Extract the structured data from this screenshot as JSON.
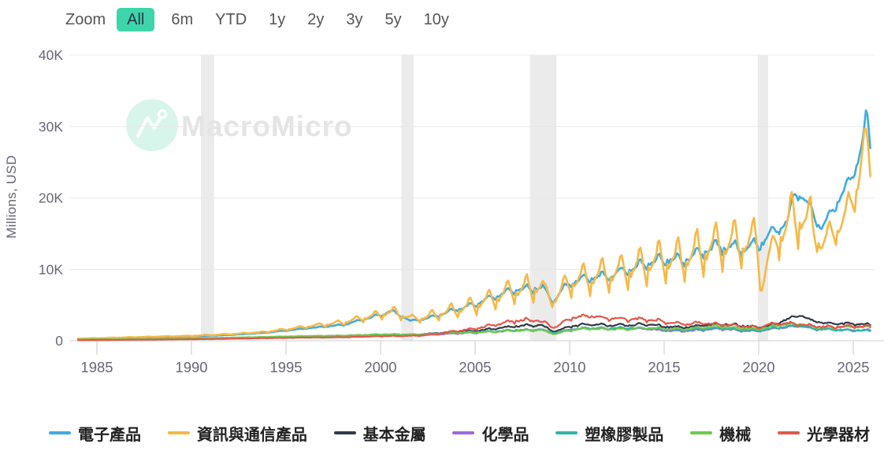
{
  "toolbar": {
    "zoom_label": "Zoom",
    "active_color": "#3fd5ab",
    "ranges": [
      {
        "label": "All",
        "active": true
      },
      {
        "label": "6m",
        "active": false
      },
      {
        "label": "YTD",
        "active": false
      },
      {
        "label": "1y",
        "active": false
      },
      {
        "label": "2y",
        "active": false
      },
      {
        "label": "3y",
        "active": false
      },
      {
        "label": "5y",
        "active": false
      },
      {
        "label": "10y",
        "active": false
      }
    ]
  },
  "chart": {
    "watermark": "MacroMicro",
    "y_axis": {
      "title": "Millions, USD",
      "ticks": [
        {
          "label": "40K",
          "value": 40000
        },
        {
          "label": "30K",
          "value": 30000
        },
        {
          "label": "20K",
          "value": 20000
        },
        {
          "label": "10K",
          "value": 10000
        },
        {
          "label": "0",
          "value": 0
        }
      ]
    },
    "x_axis": {
      "ticks": [
        {
          "label": "1985",
          "value": 1985
        },
        {
          "label": "1990",
          "value": 1990
        },
        {
          "label": "1995",
          "value": 1995
        },
        {
          "label": "2000",
          "value": 2000
        },
        {
          "label": "2005",
          "value": 2005
        },
        {
          "label": "2010",
          "value": 2010
        },
        {
          "label": "2015",
          "value": 2015
        },
        {
          "label": "2020",
          "value": 2020
        },
        {
          "label": "2025",
          "value": 2025
        }
      ]
    }
  },
  "chart_data": {
    "type": "line",
    "title": "",
    "xlabel": "",
    "ylabel": "Millions, USD",
    "ylim": [
      0,
      40000
    ],
    "x_range": [
      1984,
      2025.9
    ],
    "grid": true,
    "legend_position": "bottom",
    "recession_bands": [
      [
        1990.5,
        1991.2
      ],
      [
        2001.1,
        2001.75
      ],
      [
        2007.9,
        2009.3
      ],
      [
        2019.95,
        2020.5
      ]
    ],
    "series": [
      {
        "id": "electronics",
        "name": "電子產品",
        "color": "#3fabdf",
        "width": 2.6,
        "seasonal": 0.1,
        "noise": 0.02,
        "points": [
          [
            1984,
            250
          ],
          [
            1986,
            350
          ],
          [
            1988,
            520
          ],
          [
            1990,
            620
          ],
          [
            1992,
            800
          ],
          [
            1994,
            1150
          ],
          [
            1996,
            1700
          ],
          [
            1998,
            2200
          ],
          [
            1999.5,
            3200
          ],
          [
            2000.6,
            4100
          ],
          [
            2001.6,
            2700
          ],
          [
            2002.5,
            3100
          ],
          [
            2004,
            4300
          ],
          [
            2005,
            5000
          ],
          [
            2006,
            6100
          ],
          [
            2007,
            6900
          ],
          [
            2008.6,
            7400
          ],
          [
            2009.1,
            5400
          ],
          [
            2010,
            8000
          ],
          [
            2011,
            8600
          ],
          [
            2012,
            8900
          ],
          [
            2013,
            9600
          ],
          [
            2014,
            10600
          ],
          [
            2015,
            11200
          ],
          [
            2016,
            11000
          ],
          [
            2017,
            12200
          ],
          [
            2018,
            13000
          ],
          [
            2019,
            12600
          ],
          [
            2020,
            13200
          ],
          [
            2020.8,
            15000
          ],
          [
            2021.5,
            16500
          ],
          [
            2021.9,
            20500
          ],
          [
            2022.3,
            20000
          ],
          [
            2022.8,
            18000
          ],
          [
            2023.3,
            15500
          ],
          [
            2023.8,
            17500
          ],
          [
            2024.3,
            20000
          ],
          [
            2024.8,
            22000
          ],
          [
            2025.2,
            24500
          ],
          [
            2025.5,
            28000
          ],
          [
            2025.7,
            32500
          ],
          [
            2025.9,
            27000
          ]
        ]
      },
      {
        "id": "ict-products",
        "name": "資訊與通信產品",
        "color": "#f6b846",
        "width": 2.6,
        "seasonal": 0.34,
        "noise": 0.02,
        "points": [
          [
            1984,
            300
          ],
          [
            1986,
            420
          ],
          [
            1988,
            560
          ],
          [
            1990,
            680
          ],
          [
            1992,
            900
          ],
          [
            1994,
            1250
          ],
          [
            1996,
            1900
          ],
          [
            1998,
            2500
          ],
          [
            1999.5,
            3300
          ],
          [
            2000.7,
            3900
          ],
          [
            2001.7,
            2900
          ],
          [
            2002.5,
            3200
          ],
          [
            2004,
            4100
          ],
          [
            2005,
            4700
          ],
          [
            2006,
            5600
          ],
          [
            2007,
            6600
          ],
          [
            2008.6,
            7200
          ],
          [
            2009.1,
            5300
          ],
          [
            2010,
            7700
          ],
          [
            2011,
            8200
          ],
          [
            2012,
            8700
          ],
          [
            2013,
            9200
          ],
          [
            2014,
            10000
          ],
          [
            2015,
            10700
          ],
          [
            2016,
            10700
          ],
          [
            2017,
            11800
          ],
          [
            2018,
            12600
          ],
          [
            2019,
            12700
          ],
          [
            2019.9,
            13200
          ],
          [
            2020.12,
            6300
          ],
          [
            2020.5,
            11500
          ],
          [
            2021,
            13800
          ],
          [
            2021.9,
            16500
          ],
          [
            2022.8,
            15500
          ],
          [
            2023.3,
            12800
          ],
          [
            2023.8,
            14500
          ],
          [
            2024.3,
            15500
          ],
          [
            2024.8,
            18000
          ],
          [
            2025.3,
            22000
          ],
          [
            2025.6,
            28500
          ],
          [
            2025.9,
            23000
          ]
        ]
      },
      {
        "id": "base-metals",
        "name": "基本金屬",
        "color": "#313b49",
        "width": 2.2,
        "seasonal": 0.1,
        "noise": 0.05,
        "points": [
          [
            1984,
            150
          ],
          [
            1988,
            250
          ],
          [
            1990,
            300
          ],
          [
            1992,
            380
          ],
          [
            1994,
            480
          ],
          [
            1996,
            620
          ],
          [
            1998,
            700
          ],
          [
            2000,
            850
          ],
          [
            2002,
            850
          ],
          [
            2004,
            1250
          ],
          [
            2005,
            1350
          ],
          [
            2006,
            1650
          ],
          [
            2007,
            1950
          ],
          [
            2008.5,
            2150
          ],
          [
            2009.2,
            1250
          ],
          [
            2010,
            1950
          ],
          [
            2011,
            2250
          ],
          [
            2012,
            2150
          ],
          [
            2013,
            2150
          ],
          [
            2014,
            2250
          ],
          [
            2015,
            1950
          ],
          [
            2016,
            1800
          ],
          [
            2017,
            2100
          ],
          [
            2018,
            2350
          ],
          [
            2019,
            2100
          ],
          [
            2020,
            1850
          ],
          [
            2020.8,
            2200
          ],
          [
            2021.5,
            3000
          ],
          [
            2021.9,
            3400
          ],
          [
            2022.3,
            3500
          ],
          [
            2022.8,
            2800
          ],
          [
            2023.5,
            2400
          ],
          [
            2024,
            2400
          ],
          [
            2025,
            2300
          ],
          [
            2025.9,
            2200
          ]
        ]
      },
      {
        "id": "chemicals",
        "name": "化學品",
        "color": "#9c6ade",
        "width": 2.2,
        "seasonal": 0.1,
        "noise": 0.05,
        "points": [
          [
            1984,
            100
          ],
          [
            1988,
            200
          ],
          [
            1990,
            260
          ],
          [
            1992,
            330
          ],
          [
            1994,
            420
          ],
          [
            1996,
            520
          ],
          [
            1998,
            560
          ],
          [
            2000,
            700
          ],
          [
            2002,
            750
          ],
          [
            2004,
            1000
          ],
          [
            2006,
            1250
          ],
          [
            2007,
            1400
          ],
          [
            2008.5,
            1500
          ],
          [
            2009.2,
            950
          ],
          [
            2010,
            1500
          ],
          [
            2011,
            1750
          ],
          [
            2012,
            1650
          ],
          [
            2013,
            1700
          ],
          [
            2014,
            1650
          ],
          [
            2015,
            1400
          ],
          [
            2016,
            1300
          ],
          [
            2017,
            1500
          ],
          [
            2018,
            1650
          ],
          [
            2019,
            1400
          ],
          [
            2020,
            1300
          ],
          [
            2021,
            1750
          ],
          [
            2021.9,
            2000
          ],
          [
            2022.3,
            2050
          ],
          [
            2023,
            1600
          ],
          [
            2024,
            1550
          ],
          [
            2025,
            1500
          ],
          [
            2025.9,
            1450
          ]
        ]
      },
      {
        "id": "plastics-rubber",
        "name": "塑橡膠製品",
        "color": "#2cb5a5",
        "width": 2.2,
        "seasonal": 0.1,
        "noise": 0.05,
        "points": [
          [
            1984,
            120
          ],
          [
            1988,
            230
          ],
          [
            1990,
            300
          ],
          [
            1992,
            380
          ],
          [
            1994,
            500
          ],
          [
            1996,
            600
          ],
          [
            1998,
            650
          ],
          [
            2000,
            800
          ],
          [
            2002,
            820
          ],
          [
            2004,
            1100
          ],
          [
            2006,
            1300
          ],
          [
            2007,
            1450
          ],
          [
            2008.5,
            1550
          ],
          [
            2009.2,
            1050
          ],
          [
            2010,
            1550
          ],
          [
            2011,
            1750
          ],
          [
            2012,
            1700
          ],
          [
            2013,
            1750
          ],
          [
            2014,
            1750
          ],
          [
            2015,
            1550
          ],
          [
            2016,
            1450
          ],
          [
            2017,
            1600
          ],
          [
            2018,
            1750
          ],
          [
            2019,
            1500
          ],
          [
            2020,
            1400
          ],
          [
            2021,
            1850
          ],
          [
            2021.9,
            2050
          ],
          [
            2022.3,
            2000
          ],
          [
            2023,
            1600
          ],
          [
            2024,
            1500
          ],
          [
            2025,
            1400
          ],
          [
            2025.9,
            1350
          ]
        ]
      },
      {
        "id": "machinery",
        "name": "機械",
        "color": "#6fc84f",
        "width": 2.2,
        "seasonal": 0.1,
        "noise": 0.05,
        "points": [
          [
            1984,
            150
          ],
          [
            1988,
            280
          ],
          [
            1990,
            350
          ],
          [
            1992,
            430
          ],
          [
            1994,
            550
          ],
          [
            1996,
            650
          ],
          [
            1998,
            700
          ],
          [
            2000,
            880
          ],
          [
            2002,
            850
          ],
          [
            2004,
            1100
          ],
          [
            2006,
            1250
          ],
          [
            2007,
            1400
          ],
          [
            2008.5,
            1500
          ],
          [
            2009.2,
            900
          ],
          [
            2010,
            1450
          ],
          [
            2011,
            1700
          ],
          [
            2012,
            1600
          ],
          [
            2013,
            1600
          ],
          [
            2014,
            1750
          ],
          [
            2015,
            1650
          ],
          [
            2016,
            1600
          ],
          [
            2017,
            1850
          ],
          [
            2018,
            2000
          ],
          [
            2019,
            1700
          ],
          [
            2020,
            1600
          ],
          [
            2021,
            2100
          ],
          [
            2021.9,
            2350
          ],
          [
            2022.3,
            2300
          ],
          [
            2023,
            1900
          ],
          [
            2024,
            1800
          ],
          [
            2025,
            1900
          ],
          [
            2025.9,
            1850
          ]
        ]
      },
      {
        "id": "optical-instruments",
        "name": "光學器材",
        "color": "#e4574b",
        "width": 2.2,
        "seasonal": 0.12,
        "noise": 0.05,
        "points": [
          [
            1984,
            80
          ],
          [
            1988,
            160
          ],
          [
            1990,
            210
          ],
          [
            1992,
            280
          ],
          [
            1994,
            360
          ],
          [
            1996,
            440
          ],
          [
            1998,
            480
          ],
          [
            2000,
            620
          ],
          [
            2002,
            700
          ],
          [
            2003,
            900
          ],
          [
            2004,
            1350
          ],
          [
            2005,
            1650
          ],
          [
            2006,
            2150
          ],
          [
            2007,
            2700
          ],
          [
            2008.3,
            2900
          ],
          [
            2009.2,
            1800
          ],
          [
            2010,
            3100
          ],
          [
            2010.8,
            3400
          ],
          [
            2011.5,
            3300
          ],
          [
            2012,
            3100
          ],
          [
            2013,
            2950
          ],
          [
            2014,
            2950
          ],
          [
            2015,
            2600
          ],
          [
            2016,
            2300
          ],
          [
            2017,
            2400
          ],
          [
            2018,
            2250
          ],
          [
            2019,
            1950
          ],
          [
            2020,
            1850
          ],
          [
            2021,
            2400
          ],
          [
            2022,
            2300
          ],
          [
            2023,
            1950
          ],
          [
            2024,
            1900
          ],
          [
            2025,
            2000
          ],
          [
            2025.9,
            2000
          ]
        ]
      }
    ]
  },
  "style": {
    "band_color": "#ebebeb",
    "grid_color": "#e8e8e8",
    "axis_line_color": "#d2d2d2",
    "tick_color": "#c9c9c9",
    "tick_text_color": "#667",
    "watermark_circle_color": "#d8f5ec",
    "watermark_text_color": "#e4e4e4"
  }
}
